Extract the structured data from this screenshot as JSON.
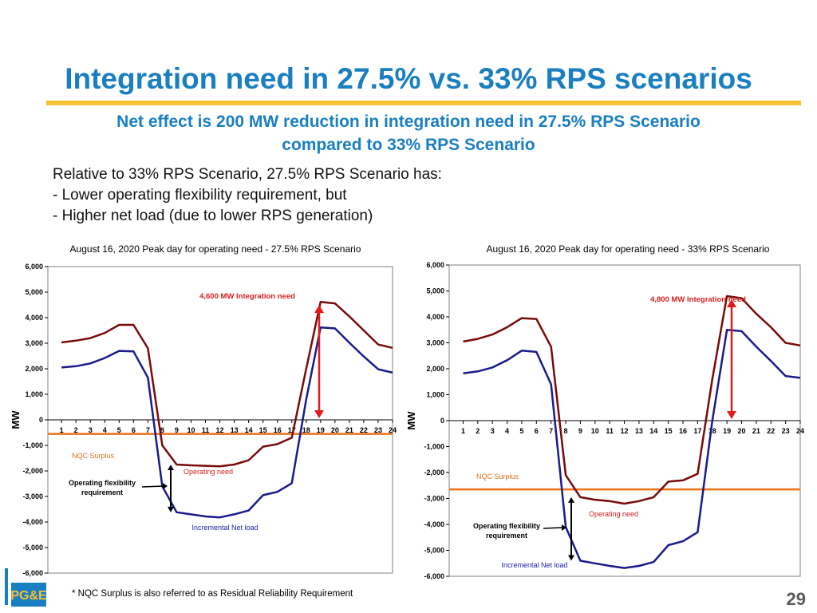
{
  "slide": {
    "title": "Integration need in 27.5% vs. 33% RPS scenarios",
    "subtitle_line1": "Net effect is 200 MW reduction in integration need in 27.5% RPS Scenario",
    "subtitle_line2": "compared to 33% RPS Scenario",
    "body_line1": "Relative to 33% RPS Scenario, 27.5% RPS Scenario has:",
    "body_line2": "-  Lower operating flexibility requirement, but",
    "body_line3": "-  Higher net load  (due to lower RPS generation)",
    "footnote": "* NQC Surplus is also referred to as Residual Reliability Requirement",
    "slide_number": "29",
    "logo_text": "PG&E"
  },
  "colors": {
    "title_blue": "#1a7fc1",
    "gold": "#f7c232",
    "operating_need": "#7a0a0a",
    "net_load": "#1a1a8c",
    "nqc_line": "#e8731a",
    "arrow_red": "#e01b1b"
  },
  "chart_data": [
    {
      "type": "line",
      "title": "August 16, 2020 Peak day for operating need - 27.5% RPS Scenario",
      "ylabel": "MW",
      "xlabel": "",
      "x": [
        1,
        2,
        3,
        4,
        5,
        6,
        7,
        8,
        9,
        10,
        11,
        12,
        13,
        14,
        15,
        16,
        17,
        18,
        19,
        20,
        21,
        22,
        23,
        24
      ],
      "ylim": [
        -6000,
        6000
      ],
      "yticks": [
        "6,000",
        "5,000",
        "4,000",
        "3,000",
        "2,000",
        "1,000",
        "0",
        "-1,000",
        "-2,000",
        "-3,000",
        "-4,000",
        "-5,000",
        "-6,000"
      ],
      "ytick_values": [
        6000,
        5000,
        4000,
        3000,
        2000,
        1000,
        0,
        -1000,
        -2000,
        -3000,
        -4000,
        -5000,
        -6000
      ],
      "series": [
        {
          "key": "operating",
          "values": [
            3030,
            3100,
            3200,
            3400,
            3720,
            3720,
            2800,
            -1000,
            -1750,
            -1780,
            -1800,
            -1820,
            -1750,
            -1580,
            -1050,
            -950,
            -700,
            2000,
            4620,
            4560,
            4050,
            3500,
            2950,
            2820
          ]
        },
        {
          "key": "netload",
          "values": [
            2050,
            2100,
            2210,
            2420,
            2700,
            2680,
            1650,
            -2600,
            -3620,
            -3700,
            -3780,
            -3820,
            -3700,
            -3550,
            -2950,
            -2820,
            -2480,
            800,
            3620,
            3580,
            3020,
            2480,
            1980,
            1850
          ]
        }
      ],
      "nqc_surplus": -550,
      "annotations": {
        "integration": "4,600 MW Integration need",
        "nqc": "NQC Surplus",
        "operating_need": "Operating need",
        "flex_line1": "Operating flexibility",
        "flex_line2": "requirement",
        "net_load": "Incremental Net load"
      }
    },
    {
      "type": "line",
      "title": "August 16, 2020 Peak day for operating need - 33% RPS Scenario",
      "ylabel": "MW",
      "xlabel": "",
      "x": [
        1,
        2,
        3,
        4,
        5,
        6,
        7,
        8,
        9,
        10,
        11,
        12,
        13,
        14,
        15,
        16,
        17,
        18,
        19,
        20,
        21,
        22,
        23,
        24
      ],
      "ylim": [
        -6000,
        6000
      ],
      "yticks": [
        "6,000",
        "5,000",
        "4,000",
        "3,000",
        "2,000",
        "1,000",
        "0",
        "-1,000",
        "-2,000",
        "-3,000",
        "-4,000",
        "-5,000",
        "-6,000"
      ],
      "ytick_values": [
        6000,
        5000,
        4000,
        3000,
        2000,
        1000,
        0,
        -1000,
        -2000,
        -3000,
        -4000,
        -5000,
        -6000
      ],
      "series": [
        {
          "key": "operating",
          "values": [
            3050,
            3150,
            3320,
            3600,
            3950,
            3920,
            2850,
            -2100,
            -2950,
            -3050,
            -3100,
            -3200,
            -3100,
            -2950,
            -2350,
            -2300,
            -2050,
            1600,
            4800,
            4720,
            4120,
            3600,
            3000,
            2900
          ]
        },
        {
          "key": "netload",
          "values": [
            1820,
            1900,
            2050,
            2330,
            2700,
            2650,
            1400,
            -4100,
            -5400,
            -5500,
            -5600,
            -5680,
            -5600,
            -5450,
            -4800,
            -4650,
            -4300,
            0,
            3500,
            3450,
            2850,
            2300,
            1720,
            1650
          ]
        }
      ],
      "nqc_surplus": -2650,
      "annotations": {
        "integration": "4,800 MW Integration need",
        "nqc": "NQC Surplus",
        "operating_need": "Operating need",
        "flex_line1": "Operating flexibility",
        "flex_line2": "requirement",
        "net_load": "Incremental Net load"
      }
    }
  ]
}
